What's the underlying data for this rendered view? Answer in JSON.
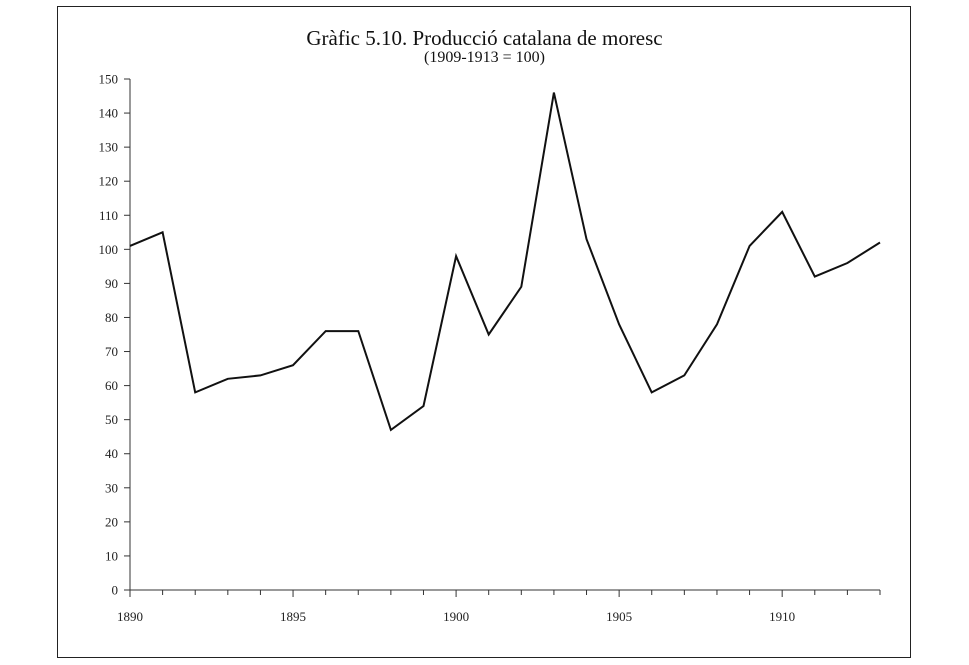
{
  "chart_data": {
    "type": "line",
    "title": "Gràfic 5.10. Producció catalana de moresc",
    "subtitle": "(1909-1913 = 100)",
    "xlabel": "",
    "ylabel": "",
    "xlim": [
      1890,
      1913
    ],
    "ylim": [
      0,
      150
    ],
    "x_ticks": [
      1890,
      1895,
      1900,
      1905,
      1910
    ],
    "y_ticks": [
      0,
      10,
      20,
      30,
      40,
      50,
      60,
      70,
      80,
      90,
      100,
      110,
      120,
      130,
      140,
      150
    ],
    "grid": false,
    "series": [
      {
        "x": [
          1890,
          1891,
          1892,
          1893,
          1894,
          1895,
          1896,
          1897,
          1898,
          1899,
          1900,
          1901,
          1902,
          1903,
          1904,
          1905,
          1906,
          1907,
          1908,
          1909,
          1910,
          1911,
          1912,
          1913
        ],
        "values": [
          101,
          105,
          58,
          62,
          63,
          66,
          76,
          76,
          47,
          54,
          98,
          75,
          89,
          146,
          103,
          78,
          58,
          63,
          78,
          101,
          111,
          92,
          96,
          102
        ],
        "color": "#111111"
      }
    ]
  }
}
